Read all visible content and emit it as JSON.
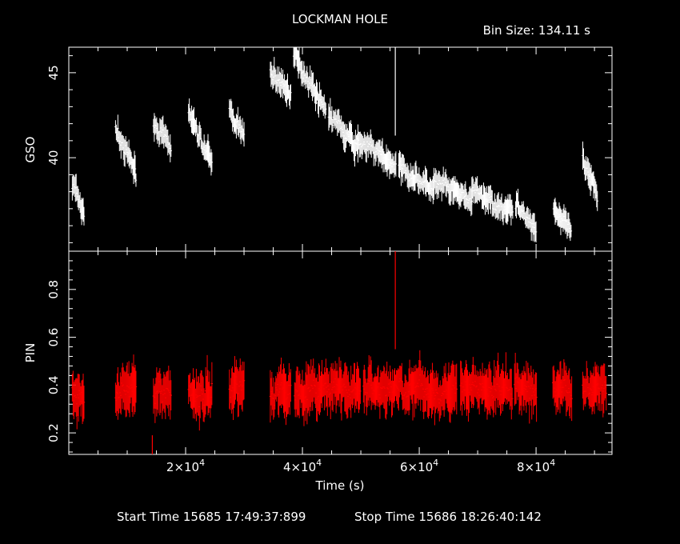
{
  "title": "LOCKMAN HOLE",
  "bin_size_label": "Bin Size: 134.11 s",
  "footer": {
    "start_time": "Start Time 15685 17:49:37:899",
    "stop_time": "Stop Time 15686 18:26:40:142"
  },
  "chart_data": [
    {
      "type": "line",
      "panel": "top",
      "ylabel": "GSO",
      "xlabel": "",
      "xlim": [
        0,
        93000
      ],
      "ylim": [
        34.5,
        46.5
      ],
      "yticks": [
        40,
        45
      ],
      "ytick_labels": [
        "40",
        "45"
      ],
      "color": "#ffffff",
      "error_bars": true,
      "segments": [
        {
          "x": [
            600,
            2600
          ],
          "y": [
            38.5,
            36.5
          ]
        },
        {
          "x": [
            8000,
            11500
          ],
          "y": [
            41.5,
            39.0
          ]
        },
        {
          "x": [
            14500,
            17500
          ],
          "y": [
            42.0,
            40.5
          ]
        },
        {
          "x": [
            20500,
            24500
          ],
          "y": [
            42.5,
            39.5
          ]
        },
        {
          "x": [
            27500,
            30000
          ],
          "y": [
            42.8,
            41.0
          ]
        },
        {
          "x": [
            34500,
            38000
          ],
          "y": [
            45.0,
            43.8
          ]
        },
        {
          "x": [
            38500,
            44000
          ],
          "y": [
            46.0,
            42.8
          ]
        },
        {
          "x": [
            44500,
            49500
          ],
          "y": [
            42.5,
            40.5
          ]
        },
        {
          "x": [
            49500,
            56000
          ],
          "y": [
            41.0,
            39.5
          ]
        },
        {
          "x": [
            56500,
            62500
          ],
          "y": [
            39.5,
            38.0
          ]
        },
        {
          "x": [
            62500,
            69000
          ],
          "y": [
            38.5,
            37.5
          ]
        },
        {
          "x": [
            69000,
            76000
          ],
          "y": [
            38.0,
            36.8
          ]
        },
        {
          "x": [
            76500,
            80000
          ],
          "y": [
            37.2,
            35.8
          ]
        },
        {
          "x": [
            83000,
            86000
          ],
          "y": [
            37.0,
            35.5
          ]
        },
        {
          "x": [
            88000,
            90500
          ],
          "y": [
            39.5,
            37.8
          ]
        }
      ],
      "spikes": [
        {
          "x": 55900,
          "y_low": 41.3,
          "y_high": 46.5
        }
      ]
    },
    {
      "type": "line",
      "panel": "bottom",
      "ylabel": "PIN",
      "xlabel": "Time (s)",
      "xlim": [
        0,
        93000
      ],
      "ylim": [
        0.11,
        0.96
      ],
      "yticks": [
        0.2,
        0.4,
        0.6,
        0.8
      ],
      "ytick_labels": [
        "0.2",
        "0.4",
        "0.6",
        "0.8"
      ],
      "xticks": [
        20000,
        40000,
        60000,
        80000
      ],
      "xtick_labels": [
        {
          "mantissa": "2×10",
          "exp": "4"
        },
        {
          "mantissa": "4×10",
          "exp": "4"
        },
        {
          "mantissa": "6×10",
          "exp": "4"
        },
        {
          "mantissa": "8×10",
          "exp": "4"
        }
      ],
      "color": "#ff0000",
      "error_bars": true,
      "segments": [
        {
          "x": [
            600,
            2600
          ],
          "y": [
            0.36,
            0.36
          ]
        },
        {
          "x": [
            8000,
            11500
          ],
          "y": [
            0.38,
            0.38
          ]
        },
        {
          "x": [
            14500,
            17500
          ],
          "y": [
            0.37,
            0.37
          ]
        },
        {
          "x": [
            20500,
            24500
          ],
          "y": [
            0.36,
            0.36
          ]
        },
        {
          "x": [
            27500,
            30000
          ],
          "y": [
            0.4,
            0.4
          ]
        },
        {
          "x": [
            34500,
            92000
          ],
          "y": [
            0.38,
            0.38
          ]
        }
      ],
      "gaps": [
        [
          38000,
          38600
        ],
        [
          50000,
          50400
        ],
        [
          66500,
          67000
        ],
        [
          76000,
          76300
        ],
        [
          80200,
          82800
        ],
        [
          86200,
          87900
        ]
      ],
      "spikes": [
        {
          "x": 55900,
          "y_low": 0.55,
          "y_high": 0.96
        },
        {
          "x": 14300,
          "y_low": 0.11,
          "y_high": 0.19
        }
      ]
    }
  ]
}
